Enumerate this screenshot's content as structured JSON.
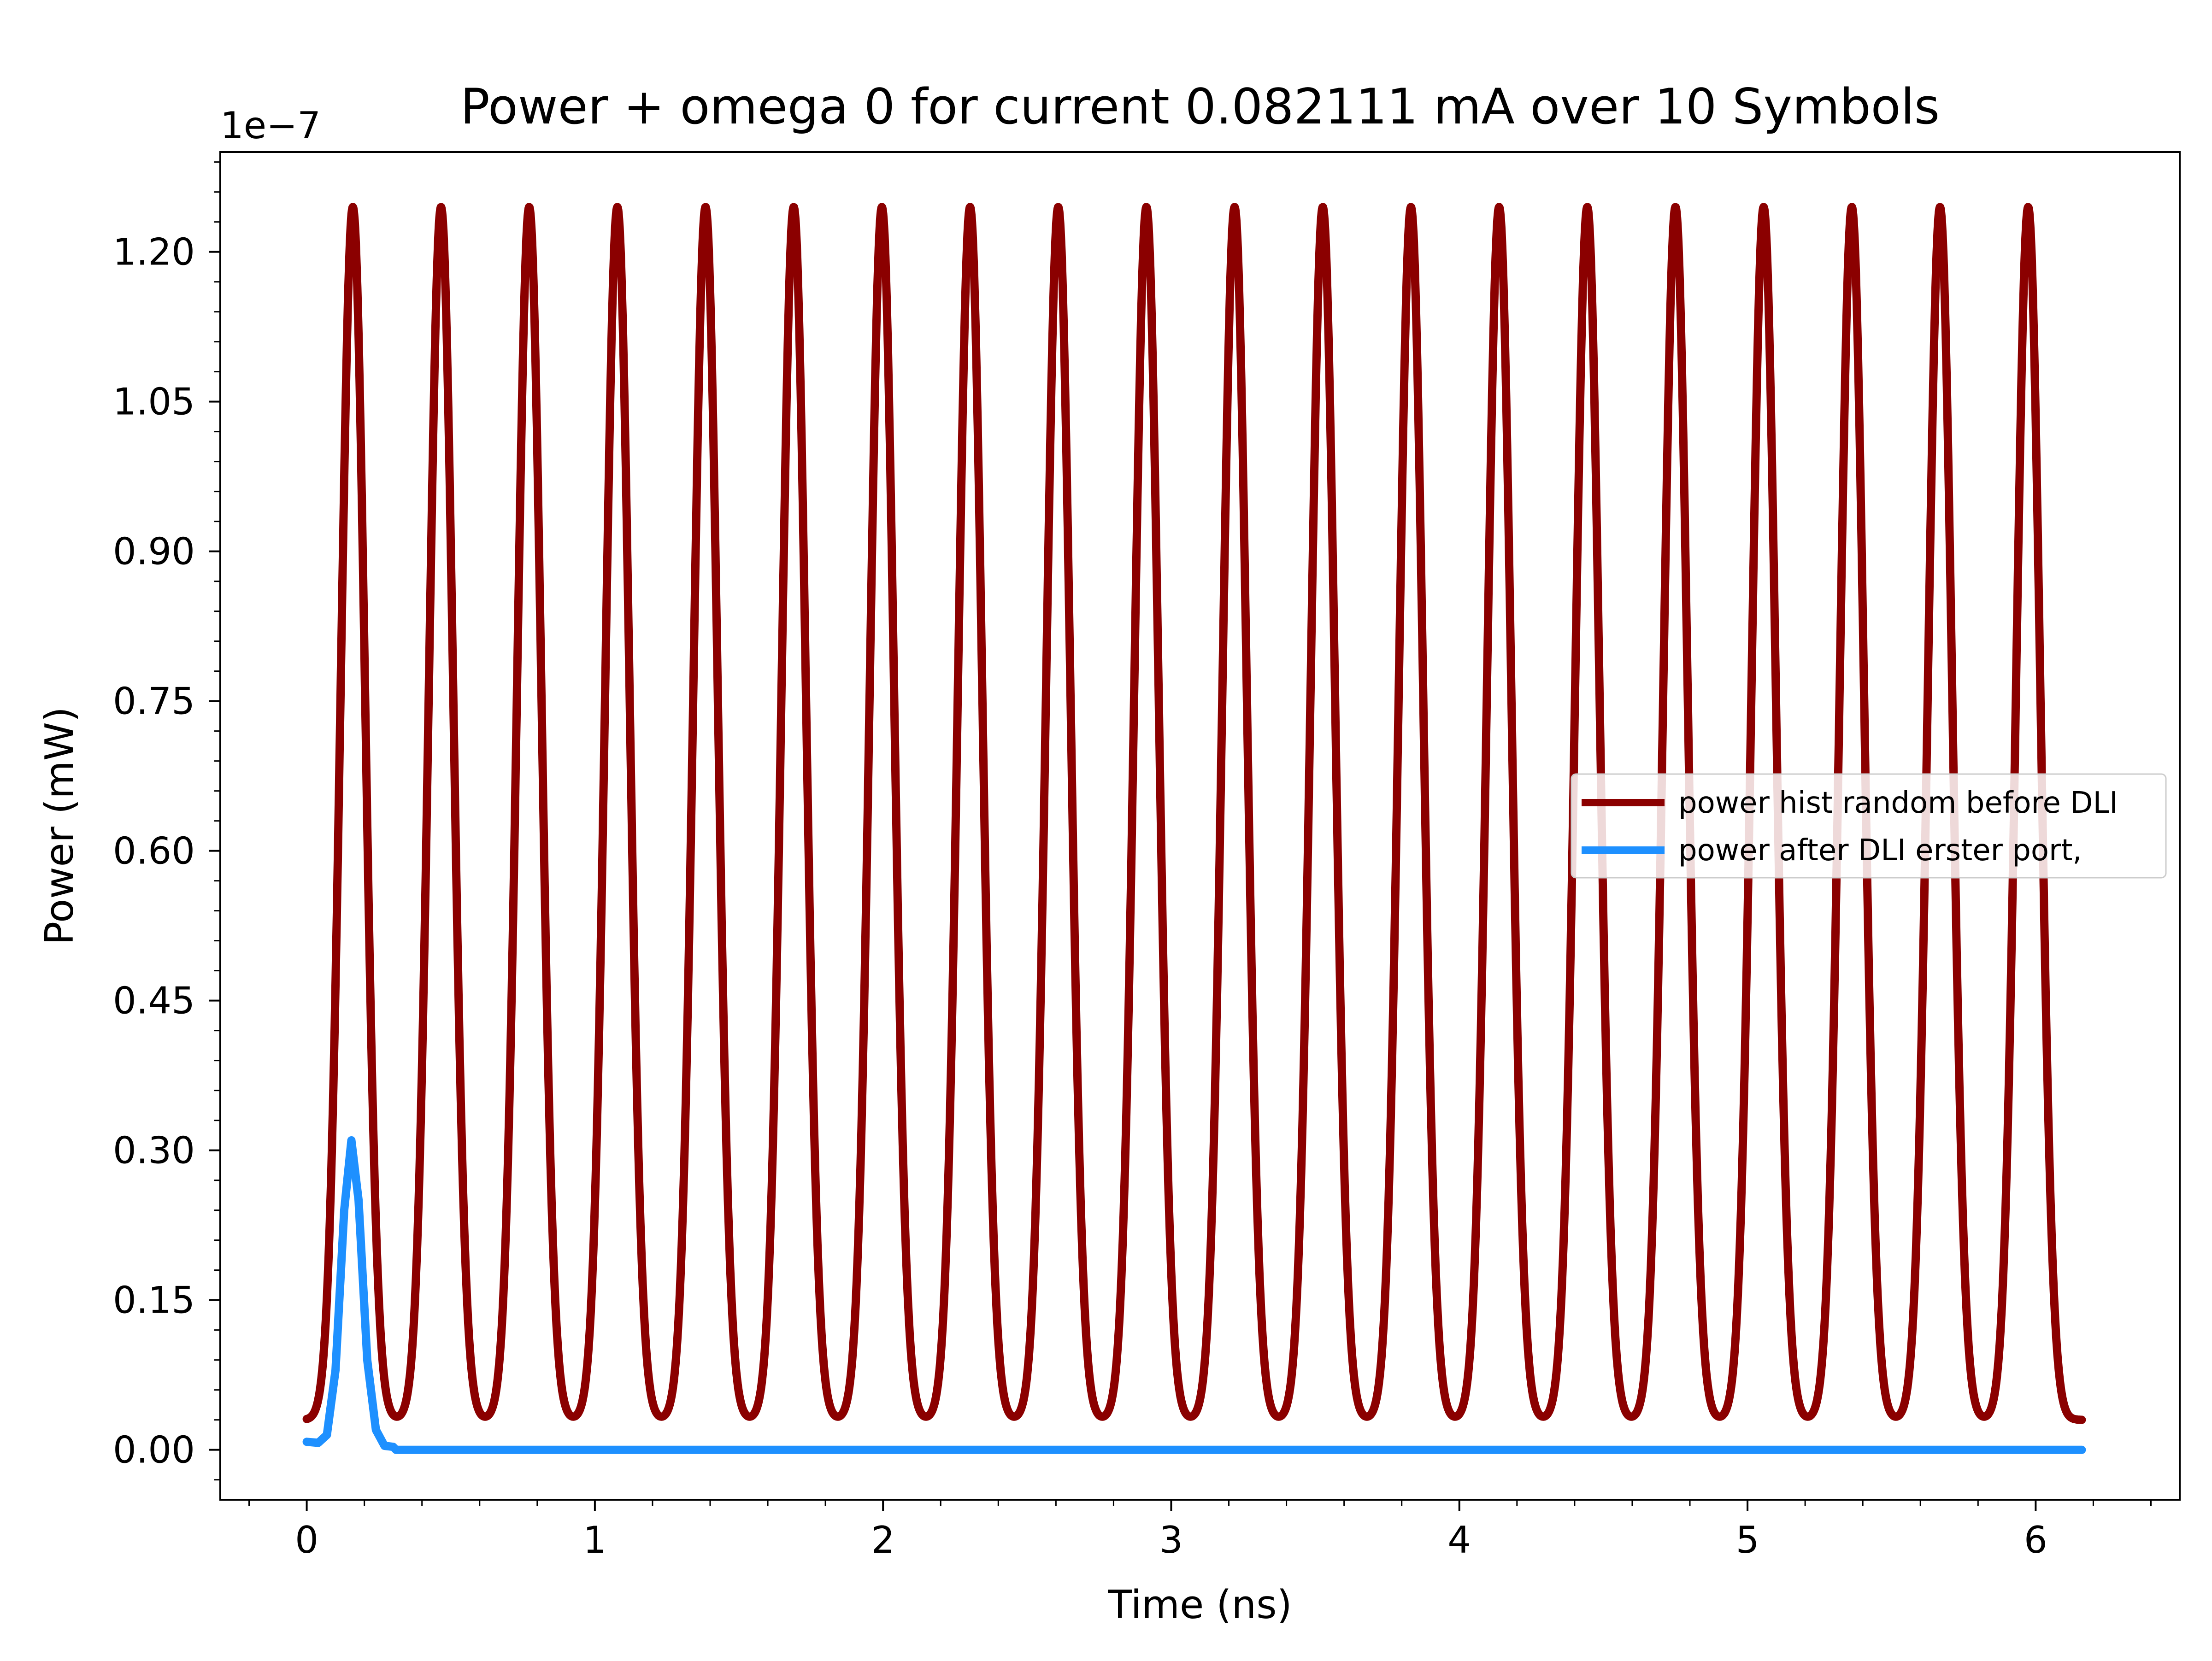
{
  "chart_data": {
    "type": "line",
    "title": "Power + omega 0 for current 0.082111 mA over 10 Symbols",
    "xlabel": "Time (ns)",
    "ylabel": "Power (mW)",
    "y_offset_label": "1e−7",
    "xlim": [
      -0.3,
      6.5
    ],
    "ylim": [
      -0.05,
      1.3
    ],
    "x_ticks": [
      0,
      1,
      2,
      3,
      4,
      5,
      6
    ],
    "x_tick_labels": [
      "0",
      "1",
      "2",
      "3",
      "4",
      "5",
      "6"
    ],
    "y_ticks": [
      0.0,
      0.15,
      0.3,
      0.45,
      0.6,
      0.75,
      0.9,
      1.05,
      1.2
    ],
    "y_tick_labels": [
      "0.00",
      "0.15",
      "0.30",
      "0.45",
      "0.60",
      "0.75",
      "0.90",
      "1.05",
      "1.20"
    ],
    "grid": false,
    "legend_position": "center-right",
    "series": [
      {
        "name": "power hist random before DLI",
        "color": "#8b0000",
        "pulse_centers": [
          0.16,
          0.466,
          0.772,
          1.078,
          1.384,
          1.69,
          1.996,
          2.302,
          2.608,
          2.914,
          3.22,
          3.526,
          3.832,
          4.138,
          4.444,
          4.75,
          5.056,
          5.362,
          5.668,
          5.974
        ],
        "peak": 1.245,
        "baseline": 0.03,
        "x_range": [
          0,
          6.16
        ]
      },
      {
        "name": "power after DLI erster port,",
        "color": "#1e90ff",
        "points": [
          [
            0.0,
            0.008
          ],
          [
            0.04,
            0.007
          ],
          [
            0.07,
            0.015
          ],
          [
            0.1,
            0.08
          ],
          [
            0.13,
            0.24
          ],
          [
            0.155,
            0.31
          ],
          [
            0.18,
            0.25
          ],
          [
            0.21,
            0.09
          ],
          [
            0.24,
            0.02
          ],
          [
            0.27,
            0.004
          ],
          [
            0.3,
            0.003
          ],
          [
            0.31,
            0.0
          ],
          [
            6.16,
            0.0
          ]
        ]
      }
    ]
  }
}
